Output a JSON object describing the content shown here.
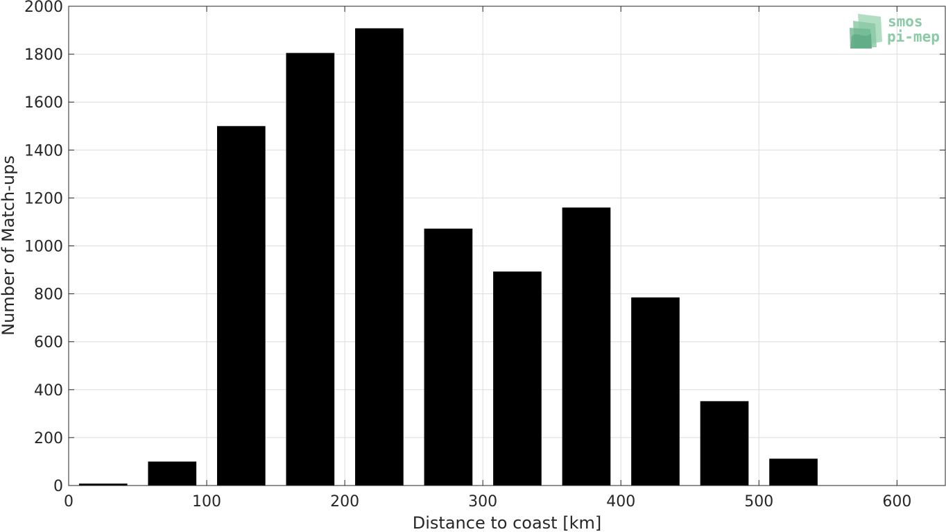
{
  "chart_data": {
    "type": "bar",
    "title": "",
    "xlabel": "Distance to coast [km]",
    "ylabel": "Number of Match-ups",
    "x": [
      25,
      75,
      125,
      175,
      225,
      275,
      325,
      375,
      425,
      475,
      525
    ],
    "values": [
      8,
      100,
      1500,
      1805,
      1908,
      1072,
      893,
      1160,
      785,
      352,
      112
    ],
    "xlim": [
      0,
      635
    ],
    "ylim": [
      0,
      2000
    ],
    "xticks": [
      0,
      100,
      200,
      300,
      400,
      500,
      600
    ],
    "yticks": [
      0,
      200,
      400,
      600,
      800,
      1000,
      1200,
      1400,
      1600,
      1800,
      2000
    ],
    "bar_width": 35,
    "bar_color": "#000000",
    "grid": true,
    "grid_color": "#dcdcdc",
    "axis_color": "#262626"
  },
  "logo": {
    "line1": "smos",
    "line2": "pi-mep",
    "color": "#8cc9a6",
    "dark_color": "#5aa882"
  }
}
